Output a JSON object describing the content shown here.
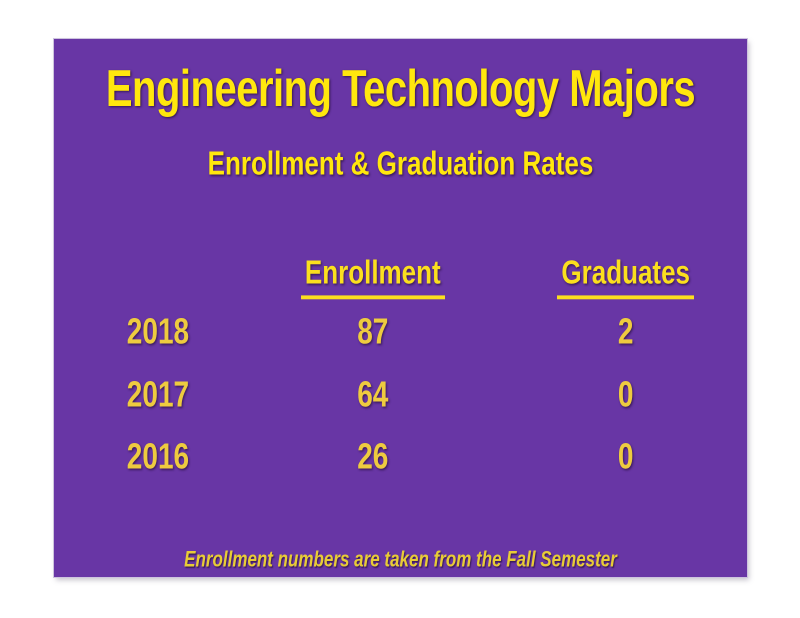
{
  "colors": {
    "page_background": "#ffffff",
    "slide_background": "#6836a5",
    "title_text": "#ffe70d",
    "header_text": "#fbdf1e",
    "data_text": "#eecb3f",
    "footnote_text": "#e8cc36"
  },
  "slide": {
    "title": "Engineering Technology Majors",
    "subtitle": "Enrollment & Graduation Rates",
    "footnote": "Enrollment numbers are taken from the Fall Semester"
  },
  "table": {
    "columns": [
      "Enrollment",
      "Graduates"
    ],
    "rows": [
      {
        "year": "2018",
        "enrollment": "87",
        "graduates": "2"
      },
      {
        "year": "2017",
        "enrollment": "64",
        "graduates": "0"
      },
      {
        "year": "2016",
        "enrollment": "26",
        "graduates": "0"
      }
    ]
  },
  "chart_data": {
    "type": "table",
    "title": "Engineering Technology Majors",
    "subtitle": "Enrollment & Graduation Rates",
    "categories": [
      "2018",
      "2017",
      "2016"
    ],
    "series": [
      {
        "name": "Enrollment",
        "values": [
          87,
          64,
          26
        ]
      },
      {
        "name": "Graduates",
        "values": [
          2,
          0,
          0
        ]
      }
    ],
    "annotations": [
      "Enrollment numbers are taken from the Fall Semester"
    ]
  }
}
